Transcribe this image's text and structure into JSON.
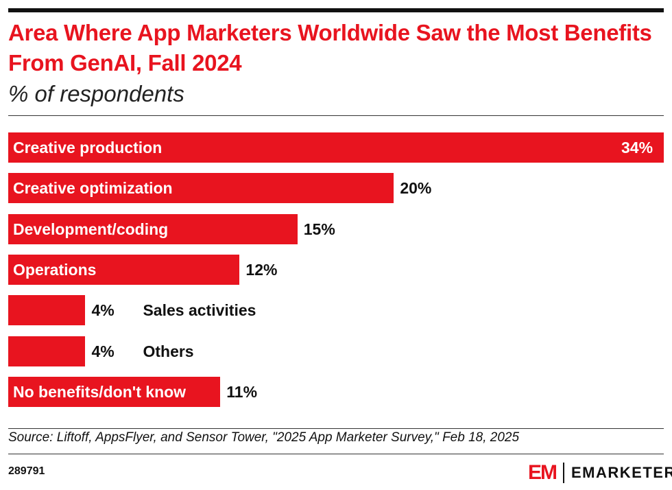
{
  "chart_data": {
    "type": "bar",
    "orientation": "horizontal",
    "title": "Area Where App Marketers Worldwide Saw the Most Benefits From GenAI, Fall 2024",
    "subtitle": "% of respondents",
    "categories": [
      "Creative production",
      "Creative optimization",
      "Development/coding",
      "Operations",
      "Sales activities",
      "Others",
      "No benefits/don't know"
    ],
    "values": [
      34,
      20,
      15,
      12,
      4,
      4,
      11
    ],
    "value_labels": [
      "34%",
      "20%",
      "15%",
      "12%",
      "4%",
      "4%",
      "11%"
    ],
    "xlim": [
      0,
      34
    ],
    "grid": false,
    "color": "#e8141f"
  },
  "footer": {
    "source": "Source: Liftoff, AppsFlyer, and Sensor Tower, \"2025 App Marketer Survey,\" Feb 18, 2025",
    "chart_id": "289791",
    "logo_mark": "EM",
    "brand": "EMARKETER"
  }
}
